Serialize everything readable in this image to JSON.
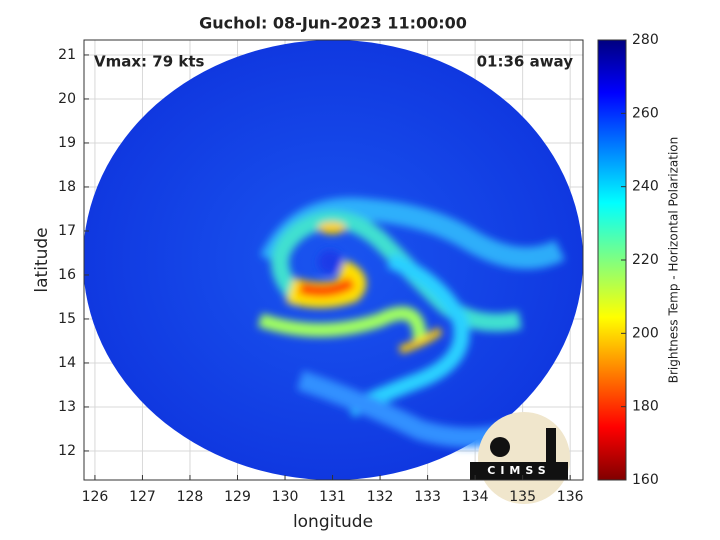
{
  "chart_data": {
    "type": "image",
    "title": "Guchol: 08-Jun-2023 11:00:00",
    "annotations": [
      "Vmax: 79 kts",
      "01:36 away"
    ],
    "xlabel": "longitude",
    "ylabel": "latitude",
    "xlim": [
      125.77,
      136.27
    ],
    "ylim": [
      11.34,
      21.34
    ],
    "xticks": [
      126,
      127,
      128,
      129,
      130,
      131,
      132,
      133,
      134,
      135,
      136
    ],
    "yticks": [
      12,
      13,
      14,
      15,
      16,
      17,
      18,
      19,
      20,
      21
    ],
    "grid": true,
    "colorbar": {
      "label": "Brightness Temp - Horizontal Polarization",
      "lim": [
        160,
        280
      ],
      "ticks": [
        160,
        180,
        200,
        220,
        240,
        260,
        280
      ],
      "colormap": "jet"
    },
    "logo": "CIMSS"
  }
}
